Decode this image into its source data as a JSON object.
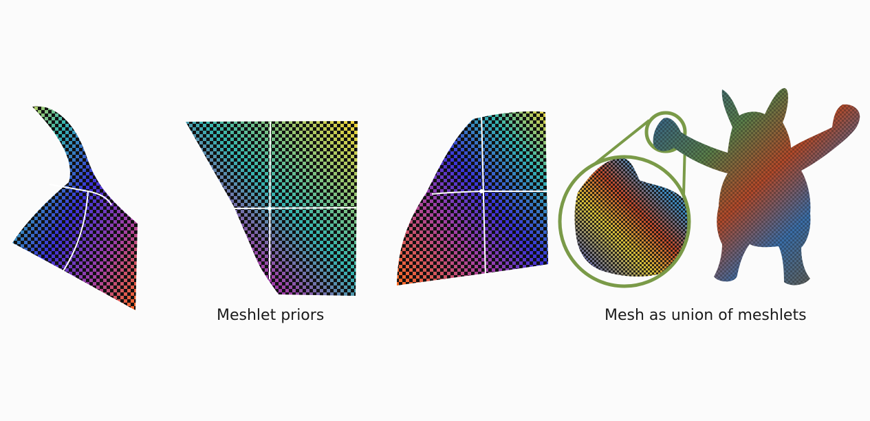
{
  "captions": {
    "priors": "Meshlet priors",
    "union": "Mesh as union of meshlets"
  },
  "colors": {
    "background": "#fbfbfb",
    "checker_dark": "#111111",
    "guide_line": "#ffffff",
    "zoom_outline": "#7a9a48",
    "gradient_yellow": "#f2d438",
    "gradient_teal": "#35b5b0",
    "gradient_blue": "#3a33d8",
    "gradient_magenta": "#a23fa7",
    "gradient_orange": "#ff6a1f"
  },
  "figure_parts": [
    "meshlet-prior-curled",
    "meshlet-prior-flat",
    "meshlet-prior-bent",
    "zoom-inset",
    "armadillo-mesh"
  ]
}
